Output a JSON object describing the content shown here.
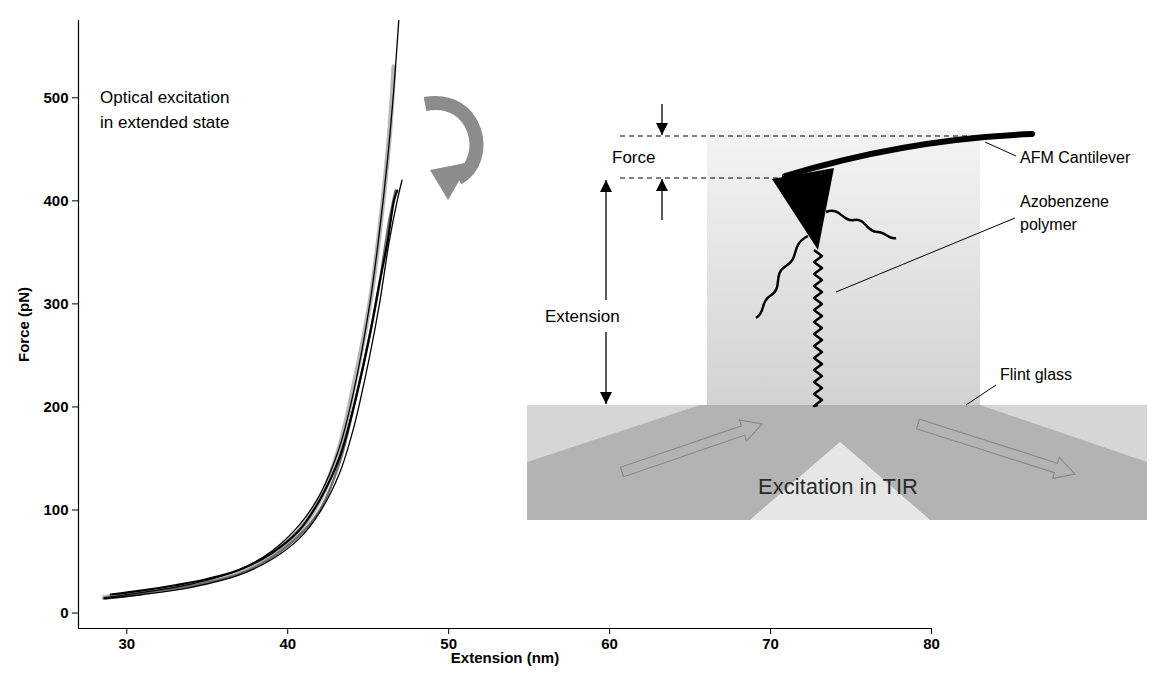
{
  "chart_data": {
    "type": "line",
    "xlabel": "Extension (nm)",
    "ylabel": "Force (pN)",
    "xlim": [
      27,
      80
    ],
    "ylim": [
      -15,
      575
    ],
    "xticks": [
      30,
      40,
      50,
      60,
      70,
      80
    ],
    "yticks": [
      0,
      100,
      200,
      300,
      400,
      500
    ],
    "grid": false,
    "annotations": [
      {
        "text": "Optical excitation in extended state"
      }
    ],
    "series": [
      {
        "color": "#b8b8b8",
        "x": [
          28.6,
          30.1,
          32,
          34.5,
          37,
          38.8,
          40.7,
          42,
          43.2,
          44.1,
          45.1,
          45.7,
          46.3,
          46.6
        ],
        "values": [
          15,
          18,
          22,
          28,
          40,
          55,
          80,
          110,
          160,
          220,
          300,
          370,
          460,
          530
        ]
      },
      {
        "color": "#6e6e6e",
        "x": [
          28.6,
          30.1,
          32,
          34.5,
          37,
          38.8,
          40.7,
          42,
          43.2,
          44.1,
          45.1,
          45.7,
          46.3,
          46.7
        ],
        "values": [
          14,
          17,
          22,
          28,
          38,
          52,
          75,
          100,
          145,
          200,
          270,
          320,
          380,
          410
        ]
      },
      {
        "color": "#000000",
        "x": [
          29,
          31,
          33,
          35,
          37,
          39,
          40.7,
          42,
          43.2,
          44.1,
          45.1,
          45.7,
          46.2,
          46.6,
          46.8
        ],
        "values": [
          18,
          22,
          27,
          33,
          42,
          58,
          80,
          110,
          150,
          200,
          270,
          320,
          360,
          400,
          410
        ]
      },
      {
        "color": "#000000",
        "x": [
          28.6,
          31,
          34,
          37,
          39,
          40.7,
          42,
          43.2,
          44.1,
          45.1,
          45.7,
          46.2,
          46.6,
          46.9
        ],
        "values": [
          15,
          20,
          28,
          42,
          60,
          85,
          115,
          160,
          215,
          300,
          370,
          440,
          510,
          575
        ]
      },
      {
        "color": "#000000",
        "x": [
          28.6,
          31,
          34,
          37,
          39,
          40.7,
          42,
          43.2,
          44.1,
          45.1,
          45.7,
          46.3,
          46.8,
          47.1
        ],
        "values": [
          14,
          18,
          25,
          37,
          52,
          72,
          98,
          135,
          180,
          250,
          300,
          360,
          400,
          420
        ]
      }
    ]
  },
  "diagram": {
    "labels": {
      "force": "Force",
      "extension": "Extension",
      "cantilever": "AFM Cantilever",
      "polymer": "Azobenzene polymer",
      "glass": "Flint glass",
      "excitation": "Excitation in TIR"
    }
  }
}
